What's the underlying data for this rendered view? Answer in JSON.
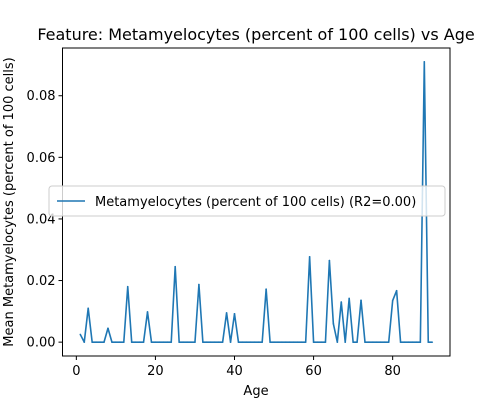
{
  "chart_data": {
    "type": "line",
    "title": "Feature: Metamyelocytes (percent of 100 cells) vs Age",
    "xlabel": "Age",
    "ylabel": "Mean Metamyelocytes (percent of 100 cells)",
    "xlim": [
      -3.5,
      94.5
    ],
    "ylim": [
      -0.0045,
      0.0955
    ],
    "xticks": [
      0,
      20,
      40,
      60,
      80
    ],
    "yticks": [
      0.0,
      0.02,
      0.04,
      0.06,
      0.08
    ],
    "xtick_labels": [
      "0",
      "20",
      "40",
      "60",
      "80"
    ],
    "ytick_labels": [
      "0.00",
      "0.02",
      "0.04",
      "0.06",
      "0.08"
    ],
    "grid": false,
    "legend_position": "center-left",
    "series": [
      {
        "name": "Metamyelocytes (percent of 100 cells) (R2=0.00)",
        "color": "#1f77b4",
        "x": [
          1,
          2,
          3,
          4,
          5,
          6,
          7,
          8,
          9,
          10,
          11,
          12,
          13,
          14,
          15,
          16,
          17,
          18,
          19,
          20,
          21,
          22,
          23,
          24,
          25,
          26,
          27,
          28,
          29,
          30,
          31,
          32,
          33,
          34,
          35,
          36,
          37,
          38,
          39,
          40,
          41,
          42,
          43,
          44,
          45,
          46,
          47,
          48,
          49,
          50,
          51,
          52,
          53,
          54,
          55,
          56,
          57,
          58,
          59,
          60,
          61,
          62,
          63,
          64,
          65,
          66,
          67,
          68,
          69,
          70,
          71,
          72,
          73,
          74,
          75,
          76,
          77,
          78,
          79,
          80,
          81,
          82,
          83,
          84,
          85,
          86,
          87,
          88,
          89,
          90
        ],
        "y": [
          0.0025,
          0.0,
          0.011,
          0.0,
          0.0,
          0.0,
          0.0,
          0.0045,
          0.0,
          0.0,
          0.0,
          0.0,
          0.018,
          0.0,
          0.0,
          0.0,
          0.0,
          0.0098,
          0.0,
          0.0,
          0.0,
          0.0,
          0.0,
          0.0,
          0.0245,
          0.0,
          0.0,
          0.0,
          0.0,
          0.0,
          0.0187,
          0.0,
          0.0,
          0.0,
          0.0,
          0.0,
          0.0,
          0.0095,
          0.0,
          0.0092,
          0.0,
          0.0,
          0.0,
          0.0,
          0.0,
          0.0,
          0.0,
          0.0172,
          0.0,
          0.0,
          0.0,
          0.0,
          0.0,
          0.0,
          0.0,
          0.0,
          0.0,
          0.0,
          0.0277,
          0.0,
          0.0,
          0.0,
          0.0,
          0.0265,
          0.006,
          0.0,
          0.013,
          0.0,
          0.0142,
          0.0,
          0.0,
          0.0136,
          0.0,
          0.0,
          0.0,
          0.0,
          0.0,
          0.0,
          0.0,
          0.0135,
          0.0167,
          0.0,
          0.0,
          0.0,
          0.0,
          0.0,
          0.0,
          0.091,
          0.0,
          0.0
        ]
      }
    ]
  }
}
